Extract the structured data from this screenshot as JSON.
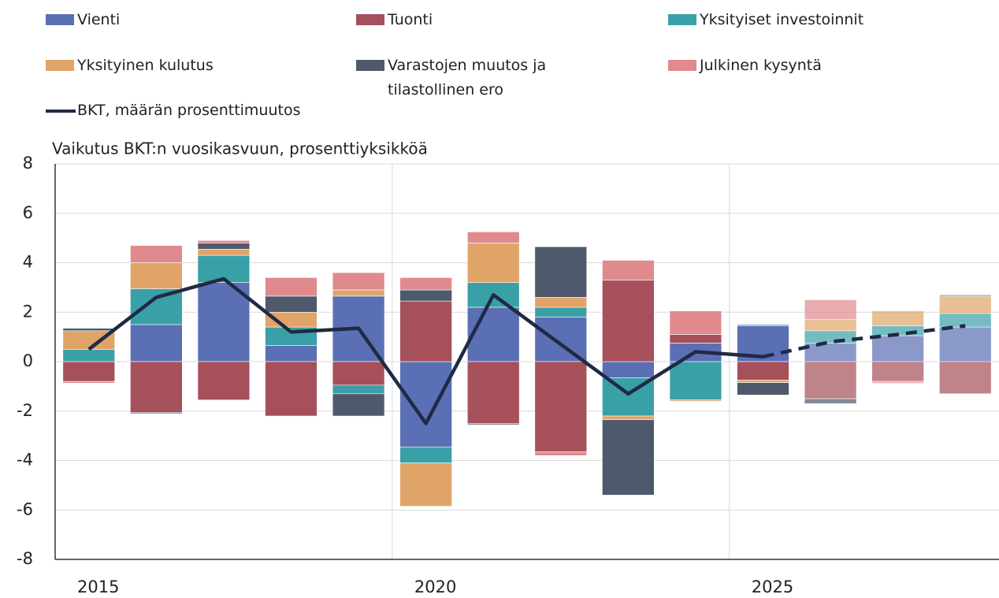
{
  "chart_data": {
    "type": "stacked_bar_line",
    "ylabel": "Vaikutus BKT:n vuosikasvuun, prosenttiyksikköä",
    "categories": [
      "2015",
      null,
      null,
      null,
      null,
      "2020",
      null,
      null,
      null,
      null,
      "2025",
      null,
      null,
      null
    ],
    "ylim": [
      -8,
      8
    ],
    "yticks": [
      -8,
      -6,
      -4,
      -2,
      0,
      2,
      4,
      6,
      8
    ],
    "grid": true,
    "forecast_from": 11,
    "series": [
      {
        "name": "Vienti",
        "color": "#5b6fb5",
        "values": [
          0,
          1.5,
          3.2,
          0.65,
          2.65,
          -3.45,
          2.2,
          1.8,
          -0.65,
          0.75,
          1.45,
          0.75,
          1.05,
          1.4
        ]
      },
      {
        "name": "Tuonti",
        "color": "#a5505a",
        "values": [
          -0.8,
          -2.05,
          -1.55,
          -2.2,
          -0.95,
          2.45,
          -2.5,
          -3.65,
          3.3,
          0.35,
          -0.75,
          -1.5,
          -0.8,
          -1.3
        ]
      },
      {
        "name": "Yksityiset investoinnit",
        "color": "#3aa0a8",
        "values": [
          0.5,
          1.45,
          1.1,
          0.75,
          -0.35,
          -0.65,
          1.0,
          0.4,
          -1.55,
          -1.55,
          0.05,
          0.5,
          0.4,
          0.55
        ]
      },
      {
        "name": "Yksityinen kulutus",
        "color": "#e0a468",
        "values": [
          0.75,
          1.05,
          0.25,
          0.6,
          0.25,
          -1.75,
          1.6,
          0.4,
          -0.15,
          -0.05,
          -0.1,
          0.45,
          0.6,
          0.7
        ]
      },
      {
        "name": "Varastojen muutos ja tilastollinen ero",
        "color": "#4e5a6b",
        "values": [
          0.1,
          -0.05,
          0.25,
          0.65,
          -0.9,
          0.45,
          -0.05,
          2.05,
          -3.05,
          0,
          -0.5,
          -0.2,
          0,
          0.05
        ]
      },
      {
        "name": "Julkinen kysyntä",
        "color": "#e08a8e",
        "values": [
          -0.07,
          0.7,
          0.1,
          0.75,
          0.7,
          0.5,
          0.45,
          -0.15,
          0.8,
          0.95,
          0,
          0.8,
          -0.08,
          0
        ]
      },
      {
        "name": "BKT, määrän prosenttimuutos",
        "color": "#1f2a44",
        "type": "line",
        "values": [
          0.5,
          2.6,
          3.35,
          1.2,
          1.35,
          -2.5,
          2.7,
          0.7,
          -1.3,
          0.4,
          0.2,
          0.8,
          1.1,
          1.45
        ]
      }
    ]
  }
}
